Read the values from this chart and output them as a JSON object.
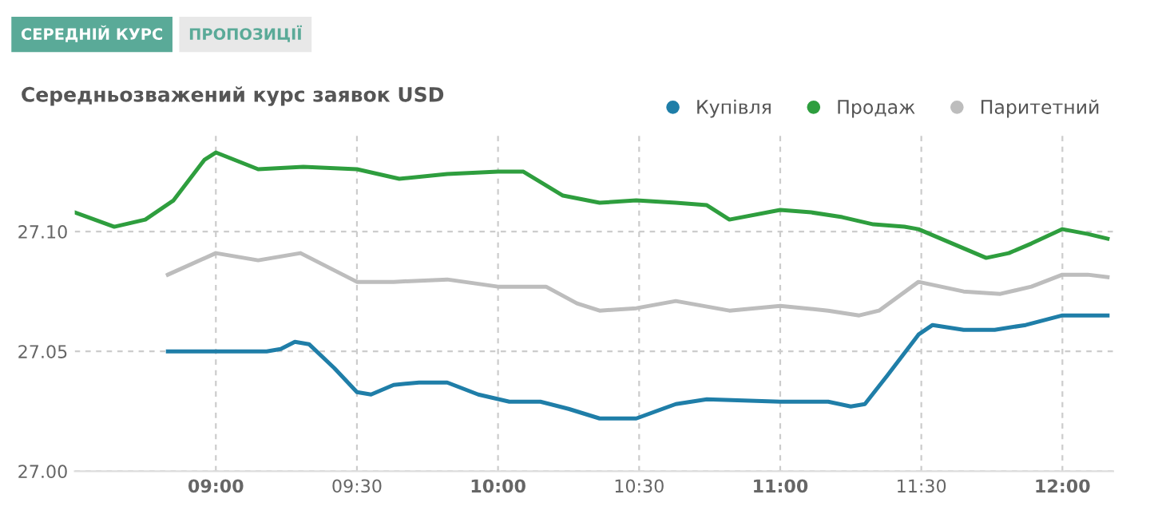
{
  "chart_data": {
    "type": "line",
    "title": "Середньозважений курс заявок USD",
    "annotations": [
      "СЕРЕДНІЙ КУРС",
      "ПРОПОЗИЦІЇ"
    ],
    "xlim": [
      8.5,
      12.18
    ],
    "ylim": [
      27.0,
      27.142
    ],
    "xticks": [
      {
        "value": 9.0,
        "label": "09:00"
      },
      {
        "value": 9.5,
        "label": "09:30"
      },
      {
        "value": 10.0,
        "label": "10:00"
      },
      {
        "value": 10.5,
        "label": "10:30"
      },
      {
        "value": 11.0,
        "label": "11:00"
      },
      {
        "value": 11.5,
        "label": "11:30"
      },
      {
        "value": 12.0,
        "label": "12:00"
      }
    ],
    "yticks": [
      {
        "value": 27.0,
        "label": "27.00"
      },
      {
        "value": 27.05,
        "label": "27.05"
      },
      {
        "value": 27.1,
        "label": "27.10"
      }
    ],
    "grid": true,
    "legend": "top right",
    "marker": "none",
    "line_style": "solid",
    "series": [
      {
        "name": "Купівля",
        "color": "#1f7ea8",
        "x": [
          8.83,
          9.18,
          9.23,
          9.28,
          9.33,
          9.42,
          9.5,
          9.55,
          9.63,
          9.72,
          9.82,
          9.93,
          10.04,
          10.15,
          10.25,
          10.36,
          10.49,
          10.63,
          10.74,
          11.0,
          11.17,
          11.25,
          11.3,
          11.38,
          11.49,
          11.54,
          11.65,
          11.76,
          11.87,
          12.0,
          12.16
        ],
        "values": [
          27.05,
          27.05,
          27.051,
          27.054,
          27.053,
          27.043,
          27.033,
          27.032,
          27.036,
          27.037,
          27.037,
          27.032,
          27.029,
          27.029,
          27.026,
          27.022,
          27.022,
          27.028,
          27.03,
          27.029,
          27.029,
          27.027,
          27.028,
          27.04,
          27.057,
          27.061,
          27.059,
          27.059,
          27.061,
          27.065,
          27.065
        ]
      },
      {
        "name": "Продаж",
        "color": "#2e9e3e",
        "x": [
          8.5,
          8.64,
          8.75,
          8.85,
          8.96,
          9.0,
          9.15,
          9.31,
          9.5,
          9.65,
          9.82,
          10.0,
          10.09,
          10.23,
          10.36,
          10.49,
          10.63,
          10.74,
          10.82,
          11.0,
          11.11,
          11.22,
          11.33,
          11.44,
          11.49,
          11.57,
          11.65,
          11.73,
          11.81,
          11.89,
          12.0,
          12.09,
          12.16
        ],
        "values": [
          27.108,
          27.102,
          27.105,
          27.113,
          27.13,
          27.133,
          27.126,
          27.127,
          27.126,
          27.122,
          27.124,
          27.125,
          27.125,
          27.115,
          27.112,
          27.113,
          27.112,
          27.111,
          27.105,
          27.109,
          27.108,
          27.106,
          27.103,
          27.102,
          27.101,
          27.097,
          27.093,
          27.089,
          27.091,
          27.095,
          27.101,
          27.099,
          27.097
        ]
      },
      {
        "name": "Паритетний",
        "color": "#bdbdbd",
        "x": [
          8.83,
          9.0,
          9.15,
          9.3,
          9.5,
          9.63,
          9.82,
          10.0,
          10.17,
          10.28,
          10.36,
          10.49,
          10.63,
          10.82,
          11.0,
          11.17,
          11.28,
          11.35,
          11.49,
          11.65,
          11.78,
          11.89,
          12.0,
          12.09,
          12.16
        ],
        "values": [
          27.082,
          27.091,
          27.088,
          27.091,
          27.079,
          27.079,
          27.08,
          27.077,
          27.077,
          27.07,
          27.067,
          27.068,
          27.071,
          27.067,
          27.069,
          27.067,
          27.065,
          27.067,
          27.079,
          27.075,
          27.074,
          27.077,
          27.082,
          27.082,
          27.081
        ]
      }
    ]
  }
}
